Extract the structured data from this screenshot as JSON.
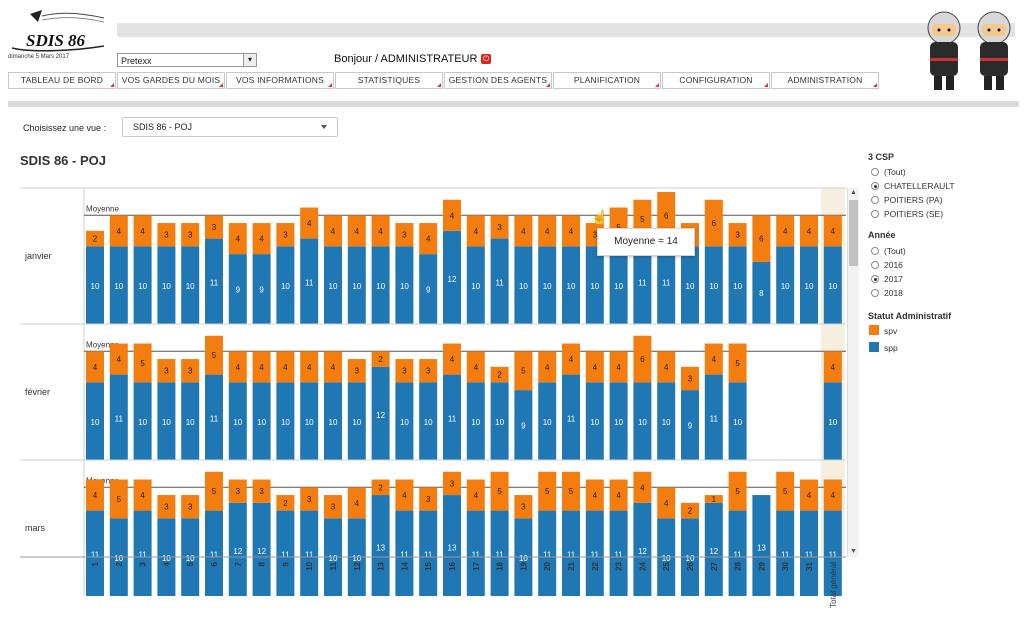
{
  "header": {
    "date": "dimanche 5 Mars 2017",
    "logo_text": "SDIS 86",
    "selector_value": "Pretexx",
    "greeting": "Bonjour / ADMINISTRATEUR"
  },
  "nav": [
    "TABLEAU DE BORD",
    "VOS GARDES DU MOIS",
    "VOS INFORMATIONS",
    "STATISTIQUES",
    "GESTION DES AGENTS",
    "PLANIFICATION",
    "CONFIGURATION",
    "ADMINISTRATION"
  ],
  "view": {
    "label": "Choisissez une vue :",
    "selected": "SDIS 86 - POJ"
  },
  "page_title": "SDIS 86 - POJ",
  "tooltip": "Moyenne = 14",
  "filters": {
    "csp": {
      "title": "3 CSP",
      "options": [
        "(Tout)",
        "CHATELLERAULT",
        "POITIERS (PA)",
        "POITIERS (SE)"
      ],
      "selected": 1
    },
    "annee": {
      "title": "Année",
      "options": [
        "(Tout)",
        "2016",
        "2017",
        "2018"
      ],
      "selected": 2
    },
    "statut": {
      "title": "Statut Administratif",
      "items": [
        {
          "label": "spv",
          "color": "#f47d0f"
        },
        {
          "label": "spp",
          "color": "#1f77b4"
        }
      ]
    }
  },
  "chart_data": {
    "type": "bar",
    "stacked": true,
    "mean_label": "Moyenne",
    "mean_value": 14,
    "categories": [
      "1",
      "2",
      "3",
      "4",
      "5",
      "6",
      "7",
      "8",
      "9",
      "10",
      "11",
      "12",
      "13",
      "14",
      "15",
      "16",
      "17",
      "18",
      "19",
      "20",
      "21",
      "22",
      "23",
      "24",
      "25",
      "26",
      "27",
      "28",
      "29",
      "30",
      "31",
      "Total général"
    ],
    "rows": [
      {
        "name": "janvier",
        "spp": [
          10,
          10,
          10,
          10,
          10,
          11,
          9,
          9,
          10,
          11,
          10,
          10,
          10,
          10,
          9,
          12,
          10,
          11,
          10,
          10,
          10,
          10,
          10,
          11,
          11,
          10,
          10,
          10,
          8,
          10,
          10,
          10
        ],
        "spv": [
          2,
          4,
          4,
          3,
          3,
          3,
          4,
          4,
          3,
          4,
          4,
          4,
          4,
          3,
          4,
          4,
          4,
          3,
          4,
          4,
          4,
          3,
          5,
          5,
          6,
          3,
          6,
          3,
          6,
          4,
          4,
          4
        ]
      },
      {
        "name": "février",
        "spp": [
          10,
          11,
          10,
          10,
          10,
          11,
          10,
          10,
          10,
          10,
          10,
          10,
          12,
          10,
          10,
          11,
          10,
          10,
          9,
          10,
          11,
          10,
          10,
          10,
          10,
          9,
          11,
          10,
          null,
          null,
          null,
          10
        ],
        "spv": [
          4,
          4,
          5,
          3,
          3,
          5,
          4,
          4,
          4,
          4,
          4,
          3,
          2,
          3,
          3,
          4,
          4,
          2,
          5,
          4,
          4,
          4,
          4,
          6,
          4,
          3,
          4,
          5,
          null,
          null,
          null,
          4
        ]
      },
      {
        "name": "mars",
        "spp": [
          11,
          10,
          11,
          10,
          10,
          11,
          12,
          12,
          11,
          11,
          10,
          10,
          13,
          11,
          11,
          13,
          11,
          11,
          10,
          11,
          11,
          11,
          11,
          12,
          10,
          10,
          12,
          11,
          13,
          11,
          11,
          11
        ],
        "spv": [
          4,
          5,
          4,
          3,
          3,
          5,
          3,
          3,
          2,
          3,
          3,
          4,
          2,
          4,
          3,
          3,
          4,
          5,
          3,
          5,
          5,
          4,
          4,
          4,
          4,
          2,
          1,
          5,
          0,
          5,
          4,
          4
        ]
      }
    ],
    "colors": {
      "spv": "#f47d0f",
      "spp": "#1f77b4",
      "total_bg": "#f5efe0"
    },
    "ylim": [
      0,
      17
    ]
  }
}
